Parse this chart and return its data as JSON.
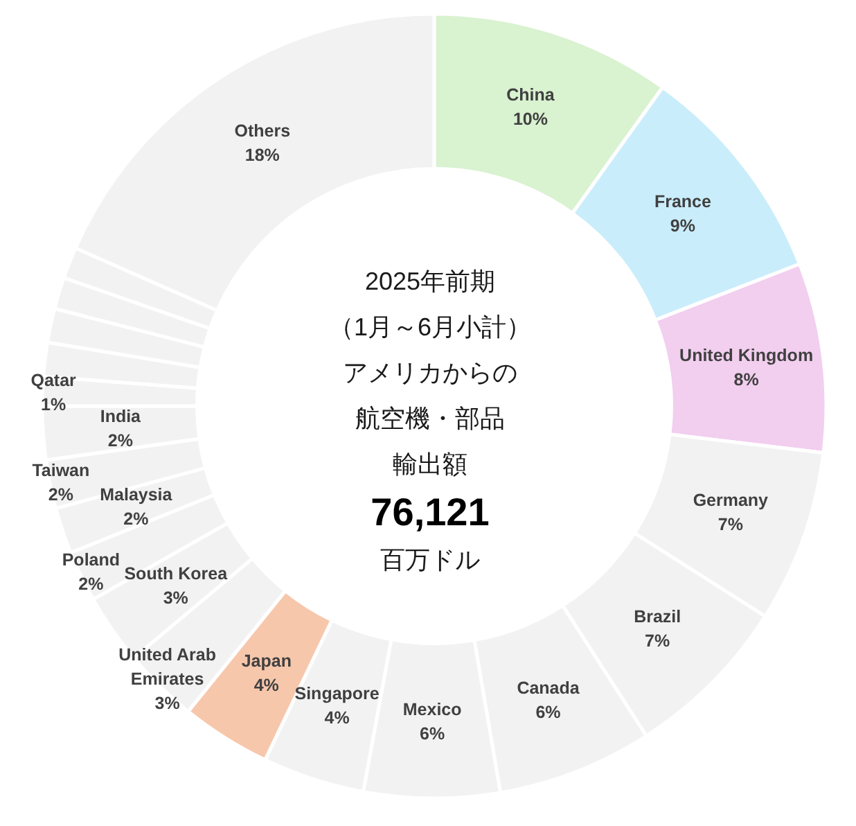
{
  "chart_data": {
    "type": "donut",
    "title": "2025年前期",
    "subtitle": "（1月～6月小計）",
    "annotations": [
      "アメリカからの",
      "航空機・部品",
      "輸出額",
      "76,121",
      "百万ドル"
    ],
    "categories": [
      "China",
      "France",
      "United Kingdom",
      "Germany",
      "Brazil",
      "Canada",
      "Mexico",
      "Singapore",
      "Japan",
      "United Arab Emirates",
      "South Korea",
      "Poland",
      "Malaysia",
      "Taiwan",
      "India",
      "Qatar",
      null,
      null,
      null,
      null,
      "Others"
    ],
    "values": [
      9.9,
      9.2,
      7.8,
      7.1,
      6.9,
      6.4,
      5.6,
      4.2,
      3.7,
      3.1,
      2.9,
      2.1,
      1.9,
      2.0,
      2.2,
      1.2,
      1.4,
      1.4,
      1.3,
      1.3,
      18.4
    ],
    "value_labels": [
      "10%",
      "9%",
      "8%",
      "7%",
      "7%",
      "6%",
      "6%",
      "4%",
      "4%",
      "3%",
      "3%",
      "2%",
      "2%",
      "2%",
      "2%",
      "1%",
      null,
      null,
      null,
      null,
      "18%"
    ],
    "colors": [
      "#d9f2d0",
      "#caedfb",
      "#f2ceef",
      "#f2f2f2",
      "#f2f2f2",
      "#f2f2f2",
      "#f2f2f2",
      "#f2f2f2",
      "#f7c7ac",
      "#f2f2f2",
      "#f2f2f2",
      "#f2f2f2",
      "#f2f2f2",
      "#f2f2f2",
      "#f2f2f2",
      "#f2f2f2",
      "#f2f2f2",
      "#f2f2f2",
      "#f2f2f2",
      "#f2f2f2",
      "#f2f2f2"
    ]
  }
}
